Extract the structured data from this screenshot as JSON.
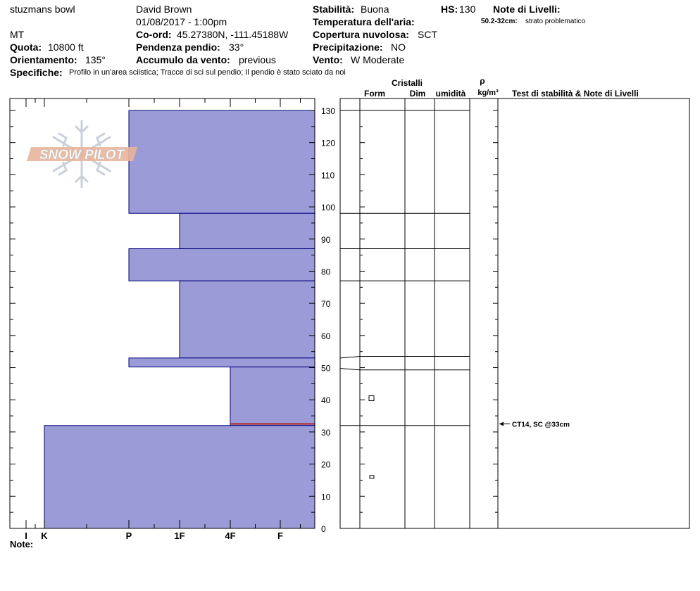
{
  "header": {
    "location": "stuzmans bowl",
    "state": "MT",
    "quota_label": "Quota:",
    "quota_value": "10800 ft",
    "orient_label": "Orientamento:",
    "orient_value": "135°",
    "specifiche_label": "Specifiche:",
    "specifiche_value": "Profilo in un'area sciistica;  Tracce di sci sul pendio;  Il pendio è stato sciato da noi",
    "observer": "David Brown",
    "datetime": "01/08/2017 - 1:00pm",
    "coord_label": "Co-ord:",
    "coord_value": "45.27380N, -111.45188W",
    "pendenza_label": "Pendenza pendio:",
    "pendenza_value": "33°",
    "accumulo_label": "Accumulo da vento:",
    "accumulo_value": "previous",
    "stabilita_label": "Stabilità:",
    "stabilita_value": "Buona",
    "temp_label": "Temperatura dell'aria:",
    "copertura_label": "Copertura nuvolosa:",
    "copertura_value": "SCT",
    "precip_label": "Precipitazione:",
    "precip_value": "NO",
    "vento_label": "Vento:",
    "vento_value": "W Moderate",
    "hs_label": "HS:",
    "hs_value": "130",
    "note_livelli_label": "Note di Livelli:",
    "note_livelli_range": "50.2-32cm:",
    "note_livelli_text": "strato problematico"
  },
  "logo_text": "SNOW PILOT",
  "footer": {
    "note_label": "Note:"
  },
  "colors": {
    "layer_fill": "#9b9bd7",
    "layer_stroke": "#00007f",
    "weak_layer": "#b22222"
  },
  "chart_data": {
    "type": "snow-profile",
    "y_range": [
      0,
      130
    ],
    "y_ticks": [
      0,
      10,
      20,
      30,
      40,
      50,
      60,
      70,
      80,
      90,
      100,
      110,
      120,
      130
    ],
    "hardness_scale": [
      "I",
      "K",
      "P",
      "1F",
      "4F",
      "F"
    ],
    "layers": [
      {
        "bottom": 98,
        "top": 130,
        "hardness": "P"
      },
      {
        "bottom": 87,
        "top": 98,
        "hardness": "1F"
      },
      {
        "bottom": 77,
        "top": 87,
        "hardness": "P"
      },
      {
        "bottom": 53,
        "top": 77,
        "hardness": "1F"
      },
      {
        "bottom": 50.2,
        "top": 53,
        "hardness": "P"
      },
      {
        "bottom": 32,
        "top": 50.2,
        "hardness": "4F"
      },
      {
        "bottom": 0,
        "top": 32,
        "hardness": "K"
      }
    ],
    "weak_layer_height": 32.5,
    "table_boundaries": [
      130,
      98,
      87,
      77,
      53.5,
      49.3,
      32
    ],
    "table_headers": {
      "cristalli": "Cristalli",
      "form": "Form",
      "dim": "Dim",
      "umidita": "umidità",
      "rho": "ρ",
      "density_unit": "kg/m³",
      "tests": "Test di stabilità & Note di Livelli"
    },
    "form_symbols": [
      {
        "height": 40.5,
        "shape": "square"
      },
      {
        "height": 16,
        "shape": "small-rect"
      }
    ],
    "tests": [
      {
        "height": 32.5,
        "label": "CT14, SC @33cm"
      }
    ]
  }
}
